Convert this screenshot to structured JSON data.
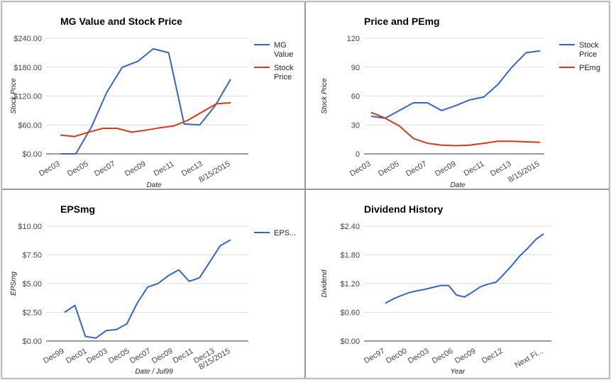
{
  "colors": {
    "blue": "#3366cc",
    "red": "#dc3912",
    "grid": "#dddddd",
    "axis": "#333333"
  },
  "chart_data": [
    {
      "type": "line",
      "title": "MG Value and Stock Price",
      "xlabel": "Date",
      "ylabel": "Stock Price",
      "ylim": [
        0,
        240
      ],
      "y_ticks": [
        "$240.00",
        "$180.00",
        "$120.00",
        "$60.00",
        "$0.00"
      ],
      "x_tick_labels": [
        "Dec03",
        "Dec05",
        "Dec07",
        "Dec09",
        "Dec11",
        "Dec13",
        "8/15/2015"
      ],
      "grid": true,
      "legend_position": "right",
      "series": [
        {
          "name": "MG Value",
          "color": "#3366cc",
          "values": [
            0,
            0,
            55,
            128,
            180,
            192,
            218,
            210,
            62,
            60,
            100,
            155
          ]
        },
        {
          "name": "Stock Price",
          "color": "#dc3912",
          "values": [
            39,
            36,
            45,
            53,
            53,
            45,
            49,
            54,
            58,
            70,
            87,
            104,
            106
          ]
        }
      ]
    },
    {
      "type": "line",
      "title": "Price and PEmg",
      "xlabel": "Date",
      "ylabel": "Stock Price",
      "ylim": [
        0,
        120
      ],
      "y_ticks": [
        "120",
        "90",
        "60",
        "30",
        "0"
      ],
      "x_tick_labels": [
        "Dec03",
        "Dec05",
        "Dec07",
        "Dec09",
        "Dec11",
        "Dec13",
        "8/15/2015"
      ],
      "grid": true,
      "legend_position": "right",
      "series": [
        {
          "name": "Stock Price",
          "color": "#3366cc",
          "values": [
            39,
            37,
            45,
            53,
            53,
            45,
            50,
            56,
            59,
            72,
            90,
            105,
            107
          ]
        },
        {
          "name": "PEmg",
          "color": "#dc3912",
          "values": [
            43,
            37,
            29,
            16,
            11,
            9,
            8.5,
            9,
            11,
            13,
            13,
            12.5,
            12
          ]
        }
      ]
    },
    {
      "type": "line",
      "title": "EPSmg",
      "xlabel": "Date / Jul99",
      "ylabel": "EPSmg",
      "ylim": [
        0,
        10
      ],
      "y_ticks": [
        "$10.00",
        "$7.50",
        "$5.00",
        "$2.50",
        "$0.00"
      ],
      "x_tick_labels": [
        "Dec99",
        "Dec01",
        "Dec03",
        "Dec05",
        "Dec07",
        "Dec09",
        "Dec11",
        "Dec13",
        "8/15/2015"
      ],
      "grid": true,
      "legend_position": "right",
      "series": [
        {
          "name": "EPS...",
          "color": "#3366cc",
          "values": [
            2.5,
            3.1,
            0.4,
            0.25,
            0.9,
            1.0,
            1.5,
            3.3,
            4.7,
            5.0,
            5.7,
            6.2,
            5.2,
            5.5,
            6.9,
            8.3,
            8.8
          ]
        }
      ]
    },
    {
      "type": "line",
      "title": "Dividend History",
      "xlabel": "Year",
      "ylabel": "Dividend",
      "ylim": [
        0,
        2.4
      ],
      "y_ticks": [
        "$2.40",
        "$1.80",
        "$1.20",
        "$0.60",
        "$0.00"
      ],
      "x_tick_labels": [
        "Dec97",
        "Dec00",
        "Dec03",
        "Dec06",
        "Dec09",
        "Dec12",
        "Next Fi..."
      ],
      "grid": true,
      "legend_position": "none",
      "series": [
        {
          "name": "",
          "color": "#3366cc",
          "values": [
            0.79,
            0.88,
            0.95,
            1.01,
            1.05,
            1.08,
            1.12,
            1.16,
            1.16,
            0.96,
            0.92,
            1.02,
            1.13,
            1.19,
            1.23,
            1.4,
            1.58,
            1.78,
            1.94,
            2.12,
            2.24
          ]
        }
      ]
    }
  ]
}
